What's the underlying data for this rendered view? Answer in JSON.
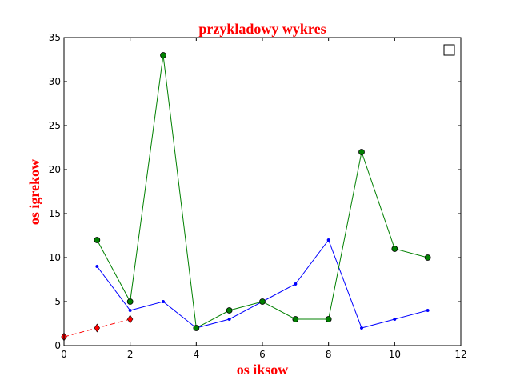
{
  "chart_data": {
    "type": "line",
    "title": "przykladowy wykres",
    "xlabel": "os iksow",
    "ylabel": "os igrekow",
    "xlim": [
      0,
      12
    ],
    "ylim": [
      0,
      35
    ],
    "xticks": [
      0,
      2,
      4,
      6,
      8,
      10,
      12
    ],
    "yticks": [
      0,
      5,
      10,
      15,
      20,
      25,
      30,
      35
    ],
    "grid": false,
    "legend": {
      "placement": "top-right",
      "entries": []
    },
    "series": [
      {
        "x": [
          1,
          2,
          3,
          4,
          5,
          6,
          7,
          8,
          9,
          10,
          11
        ],
        "y": [
          9,
          4,
          5,
          2,
          3,
          5,
          7,
          12,
          2,
          3,
          4
        ],
        "color": "#0000ff",
        "line": "solid",
        "marker": "point"
      },
      {
        "x": [
          1,
          2,
          3,
          4,
          5,
          6,
          7,
          8,
          9,
          10,
          11
        ],
        "y": [
          12,
          5,
          33,
          2,
          4,
          5,
          3,
          3,
          22,
          11,
          10
        ],
        "color": "#008000",
        "line": "solid",
        "marker": "circle"
      },
      {
        "x": [
          0,
          1,
          2
        ],
        "y": [
          1,
          2,
          3
        ],
        "color": "#ff0000",
        "line": "dashed",
        "marker": "diamond"
      }
    ],
    "title_color": "#ff0000",
    "label_color": "#ff0000"
  }
}
